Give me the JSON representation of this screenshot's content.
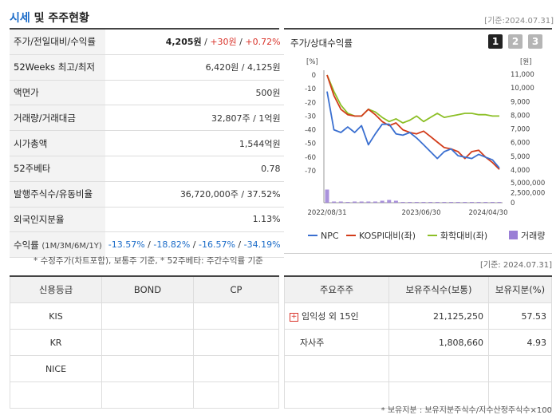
{
  "title": {
    "part1": "시세",
    "part2": " 및 주주현황"
  },
  "asof_top": "[기준:2024.07.31]",
  "price_rows": {
    "r1": {
      "label": "주가/전일대비/수익률",
      "price": "4,205원",
      "sep1": " / ",
      "change": "+30원",
      "sep2": " / ",
      "pct": "+0.72%"
    },
    "r2": {
      "label": "52Weeks 최고/최저",
      "value": "6,420원 / 4,125원"
    },
    "r3": {
      "label": "액면가",
      "value": "500원"
    },
    "r4": {
      "label": "거래량/거래대금",
      "value": "32,807주 / 1억원"
    },
    "r5": {
      "label": "시가총액",
      "value": "1,544억원"
    },
    "r6": {
      "label": "52주베타",
      "value": "0.78"
    },
    "r7": {
      "label": "발행주식수/유동비율",
      "value": "36,720,000주 / 37.52%"
    },
    "r8": {
      "label": "외국인지분율",
      "value": "1.13%"
    },
    "r9": {
      "label": "수익률",
      "label_small": "(1M/3M/6M/1Y)",
      "v1": "-13.57%",
      "v2": "-18.82%",
      "v3": "-16.57%",
      "v4": "-34.19%",
      "sep": " / "
    }
  },
  "note_left": "* 수정주가(차트포함), 보통주 기준, * 52주베타: 주간수익률 기준",
  "chart_panel": {
    "title": "주가/상대수익률",
    "tabs": [
      "1",
      "2",
      "3"
    ]
  },
  "chart_data": {
    "type": "line",
    "x_ticks": [
      "2022/08/31",
      "2023/06/30",
      "2024/04/30"
    ],
    "left_axis": {
      "unit": "[%]",
      "ticks": [
        0,
        -10,
        -20,
        -30,
        -40,
        -50,
        -60,
        -70
      ],
      "range": [
        -70,
        0
      ]
    },
    "right_axis": {
      "unit": "[원]",
      "ticks": [
        "11,000",
        "10,000",
        "9,000",
        "8,000",
        "7,000",
        "6,000",
        "5,000",
        "4,000"
      ],
      "range": [
        4000,
        11000
      ]
    },
    "volume_axis": {
      "ticks": [
        "5,000,000",
        "2,500,000",
        "0"
      ],
      "range": [
        0,
        5000000
      ]
    },
    "series": [
      {
        "name": "NPC",
        "color": "#3a6fd0",
        "values": [
          -12,
          -40,
          -42,
          -38,
          -42,
          -37,
          -51,
          -43,
          -36,
          -36,
          -43,
          -44,
          -42,
          -46,
          -51,
          -56,
          -61,
          -56,
          -54,
          -59,
          -60,
          -61,
          -58,
          -60,
          -62,
          -68
        ]
      },
      {
        "name": "KOSPI대비(좌)",
        "color": "#d23c1a",
        "values": [
          0,
          -15,
          -25,
          -29,
          -30,
          -30,
          -25,
          -29,
          -34,
          -37,
          -35,
          -40,
          -42,
          -43,
          -41,
          -45,
          -49,
          -53,
          -54,
          -56,
          -61,
          -56,
          -55,
          -60,
          -64,
          -69
        ]
      },
      {
        "name": "화학대비(좌)",
        "color": "#8cbf26",
        "values": [
          0,
          -12,
          -22,
          -28,
          -30,
          -30,
          -25,
          -27,
          -31,
          -34,
          -32,
          -35,
          -33,
          -30,
          -34,
          -31,
          -28,
          -31,
          -30,
          -29,
          -28,
          -28,
          -29,
          -29,
          -30,
          -30
        ]
      },
      {
        "name": "거래량",
        "color": "#9a7fd6",
        "values": [
          3300000,
          300000,
          300000,
          200000,
          300000,
          300000,
          300000,
          300000,
          500000,
          700000,
          500000,
          200000,
          200000,
          200000,
          200000,
          200000,
          200000,
          200000,
          200000,
          200000,
          200000,
          200000,
          200000,
          200000,
          200000,
          200000
        ]
      }
    ]
  },
  "asof_right": "[기준: 2024.07.31]",
  "credit_table": {
    "headers": [
      "신용등급",
      "BOND",
      "CP"
    ],
    "rows": [
      [
        "KIS",
        "",
        ""
      ],
      [
        "KR",
        "",
        ""
      ],
      [
        "NICE",
        "",
        ""
      ],
      [
        "",
        "",
        ""
      ]
    ]
  },
  "holder_table": {
    "headers": [
      "주요주주",
      "보유주식수(보통)",
      "보유지분(%)"
    ],
    "rows": [
      [
        "임익성 외 15인",
        "21,125,250",
        "57.53"
      ],
      [
        "자사주",
        "1,808,660",
        "4.93"
      ],
      [
        "",
        "",
        ""
      ],
      [
        "",
        "",
        ""
      ]
    ]
  },
  "note_right": "* 보유지분 : 보유지분주식수/지수산정주식수×100",
  "colors": {
    "accent": "#1a6bc8",
    "up": "#d9342b",
    "down": "#1a6bc8",
    "tab_active": "#222222",
    "tab_inactive": "#b5b5b5"
  }
}
